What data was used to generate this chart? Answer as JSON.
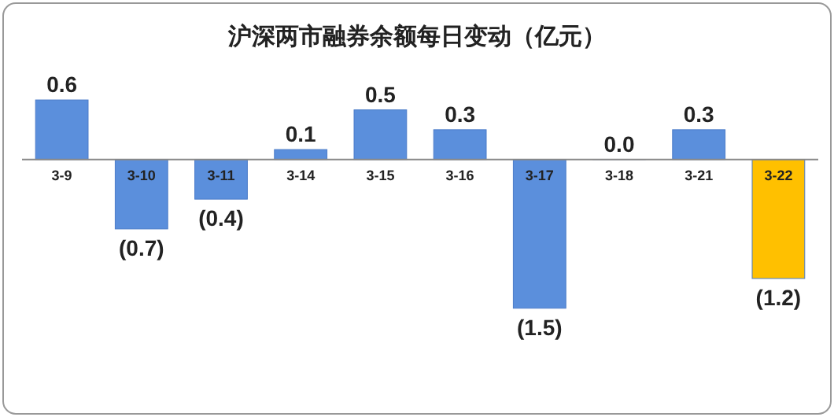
{
  "chart_data": {
    "type": "bar",
    "title": "沪深两市融券余额每日变动（亿元）",
    "categories": [
      "3-9",
      "3-10",
      "3-11",
      "3-14",
      "3-15",
      "3-16",
      "3-17",
      "3-18",
      "3-21",
      "3-22"
    ],
    "values": [
      0.6,
      -0.7,
      -0.4,
      0.1,
      0.5,
      0.3,
      -1.5,
      0.0,
      0.3,
      -1.2
    ],
    "colors": [
      "#5b8fdc",
      "#5b8fdc",
      "#5b8fdc",
      "#5b8fdc",
      "#5b8fdc",
      "#5b8fdc",
      "#5b8fdc",
      "#5b8fdc",
      "#5b8fdc",
      "#ffc000"
    ],
    "value_labels": [
      "0.6",
      "(0.7)",
      "(0.4)",
      "0.1",
      "0.5",
      "0.3",
      "(1.5)",
      "0.0",
      "0.3",
      "(1.2)"
    ]
  }
}
